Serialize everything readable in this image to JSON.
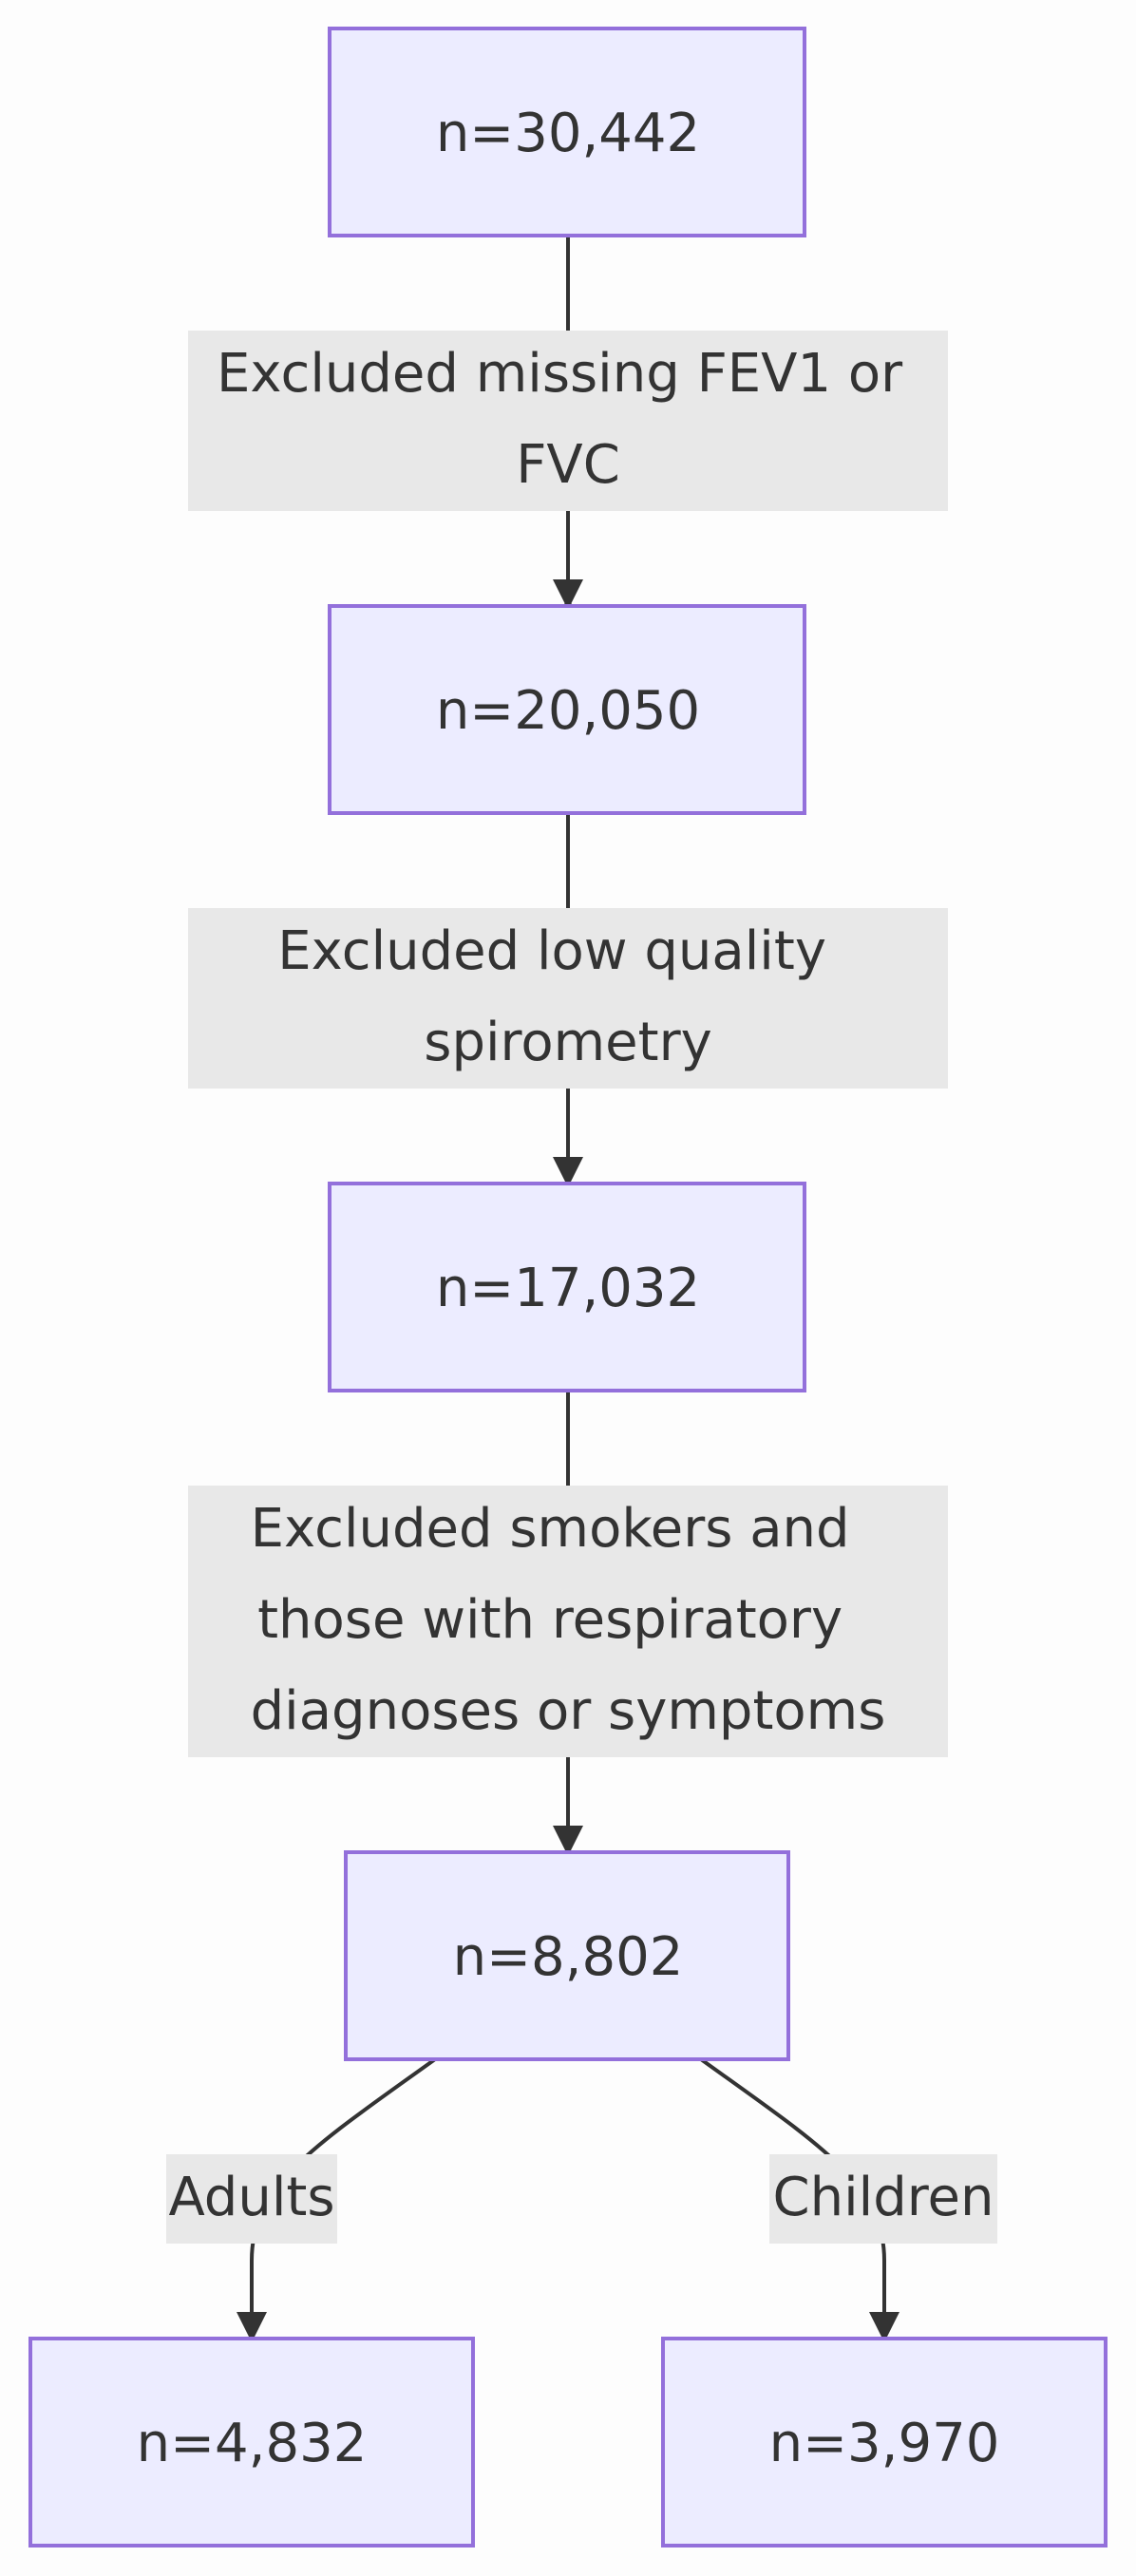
{
  "colors": {
    "node_fill": "#ececff",
    "node_stroke": "#9370db",
    "label_fill": "#e8e8e8",
    "line": "#333333",
    "text": "#333333"
  },
  "nodes": {
    "n1": "n=30,442",
    "n2": "n=20,050",
    "n3": "n=17,032",
    "n4": "n=8,802",
    "n5": "n=4,832",
    "n6": "n=3,970"
  },
  "edges": {
    "e1": [
      "Excluded missing FEV1 or",
      "FVC"
    ],
    "e2": [
      "Excluded low quality",
      "spirometry"
    ],
    "e3": [
      "Excluded smokers and",
      "those with respiratory",
      "diagnoses or symptoms"
    ],
    "e4": [
      "Adults"
    ],
    "e5": [
      "Children"
    ]
  }
}
